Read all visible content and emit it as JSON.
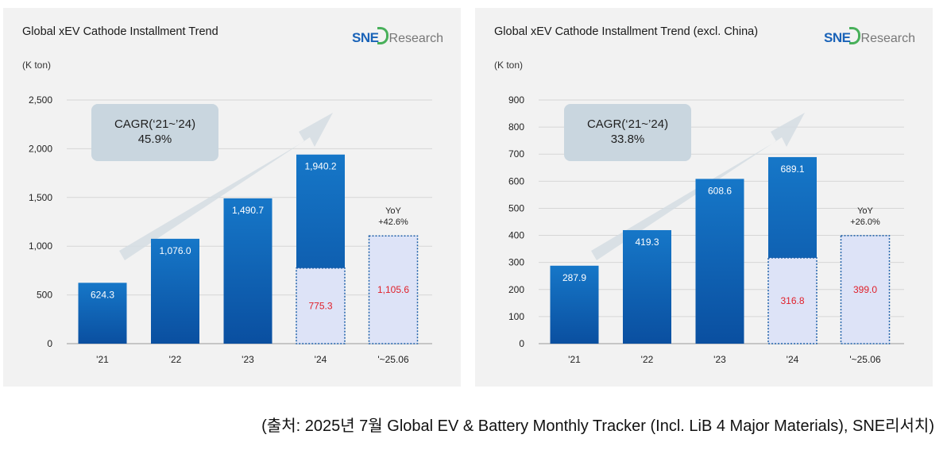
{
  "colors": {
    "bar_top": "#1677c8",
    "bar_bottom": "#0a4fa0",
    "hatched_fill": "#dde3f7",
    "hatched_border": "#1d5fa8",
    "red_label": "#e0202a",
    "grid": "#d6d6d6",
    "arrow": "#d5dde3"
  },
  "logo": {
    "brand": "SNE",
    "suffix": "Research"
  },
  "charts": [
    {
      "title": "Global xEV Cathode Installment Trend",
      "unit": "(K ton)",
      "cagr": {
        "label": "CAGR(‘21~’24)",
        "value": "45.9%"
      },
      "yoy": {
        "label": "YoY",
        "value": "+42.6%"
      }
    },
    {
      "title": "Global xEV Cathode Installment Trend (excl. China)",
      "unit": "(K ton)",
      "cagr": {
        "label": "CAGR(‘21~’24)",
        "value": "33.8%"
      },
      "yoy": {
        "label": "YoY",
        "value": "+26.0%"
      }
    }
  ],
  "chart_data": [
    {
      "type": "bar",
      "title": "Global xEV Cathode Installment Trend",
      "ylabel": "(K ton)",
      "categories": [
        "'21",
        "'22",
        "'23",
        "'24",
        "'~25.06"
      ],
      "values": [
        624.3,
        1076.0,
        1490.7,
        1940.2,
        1105.6
      ],
      "value_labels": [
        "624.3",
        "1,076.0",
        "1,490.7",
        "1,940.2",
        "1,105.6"
      ],
      "highlight_segment": {
        "category": "'24",
        "value": 775.3,
        "label": "775.3"
      },
      "ylim": [
        0,
        2500
      ],
      "yticks": [
        0,
        500,
        1000,
        1500,
        2000,
        2500
      ],
      "ytick_labels": [
        "0",
        "500",
        "1,000",
        "1,500",
        "2,000",
        "2,500"
      ],
      "grid": true
    },
    {
      "type": "bar",
      "title": "Global xEV Cathode Installment Trend (excl. China)",
      "ylabel": "(K ton)",
      "categories": [
        "'21",
        "'22",
        "'23",
        "'24",
        "'~25.06"
      ],
      "values": [
        287.9,
        419.3,
        608.6,
        689.1,
        399.0
      ],
      "value_labels": [
        "287.9",
        "419.3",
        "608.6",
        "689.1",
        "399.0"
      ],
      "highlight_segment": {
        "category": "'24",
        "value": 316.8,
        "label": "316.8"
      },
      "ylim": [
        0,
        900
      ],
      "yticks": [
        0,
        100,
        200,
        300,
        400,
        500,
        600,
        700,
        800,
        900
      ],
      "ytick_labels": [
        "0",
        "100",
        "200",
        "300",
        "400",
        "500",
        "600",
        "700",
        "800",
        "900"
      ],
      "grid": true
    }
  ],
  "source": "(출처: 2025년 7월 Global EV & Battery Monthly Tracker (Incl. LiB 4 Major Materials), SNE리서치)"
}
